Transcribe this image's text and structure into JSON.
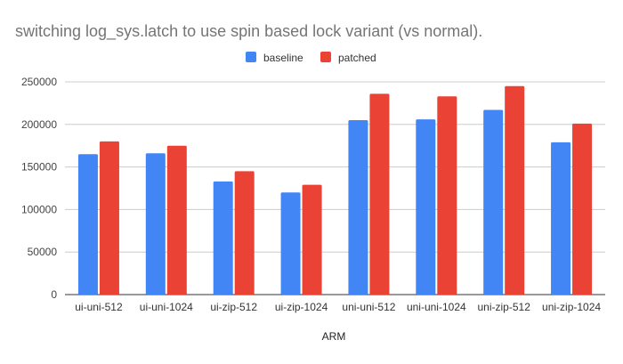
{
  "chart_data": {
    "type": "bar",
    "title": "switching log_sys.latch to use spin based lock variant (vs normal).",
    "xlabel": "ARM",
    "ylabel": "",
    "categories": [
      "ui-uni-512",
      "ui-uni-1024",
      "ui-zip-512",
      "ui-zip-1024",
      "uni-uni-512",
      "uni-uni-1024",
      "uni-zip-512",
      "uni-zip-1024"
    ],
    "series": [
      {
        "name": "baseline",
        "color": "#4285f4",
        "values": [
          165000,
          166000,
          133000,
          120000,
          205000,
          206000,
          217000,
          179000
        ]
      },
      {
        "name": "patched",
        "color": "#ea4335",
        "values": [
          180000,
          175000,
          145000,
          129000,
          236000,
          233000,
          245000,
          201000
        ]
      }
    ],
    "ylim": [
      0,
      250000
    ],
    "yticks": [
      "0",
      "50000",
      "100000",
      "150000",
      "200000",
      "250000"
    ],
    "grid": true,
    "legend": "top-center"
  }
}
